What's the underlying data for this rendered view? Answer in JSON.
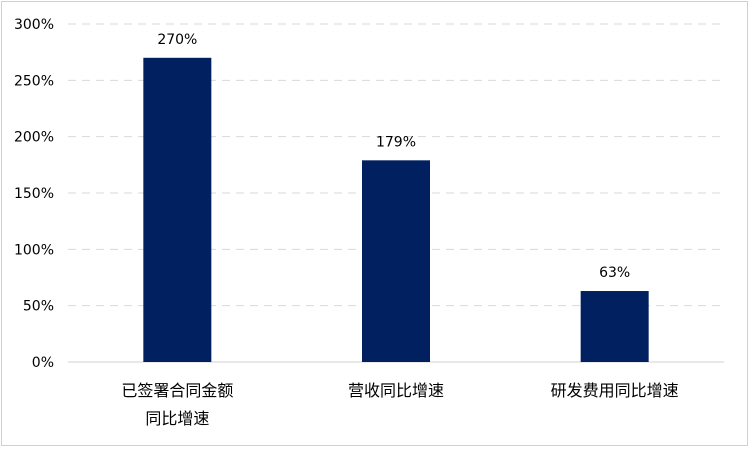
{
  "chart_data": {
    "type": "bar",
    "categories": [
      [
        "已签署合同金额",
        "同比增速"
      ],
      [
        "营收同比增速"
      ],
      [
        "研发费用同比增速"
      ]
    ],
    "values": [
      270,
      179,
      63
    ],
    "data_labels": [
      "270%",
      "179%",
      "63%"
    ],
    "y_ticks": [
      "0%",
      "50%",
      "100%",
      "150%",
      "200%",
      "250%",
      "300%"
    ],
    "y_tick_values": [
      0,
      50,
      100,
      150,
      200,
      250,
      300
    ],
    "ylim": [
      0,
      300
    ],
    "grid": true,
    "bar_color": "#002060",
    "title": "",
    "xlabel": "",
    "ylabel": ""
  }
}
